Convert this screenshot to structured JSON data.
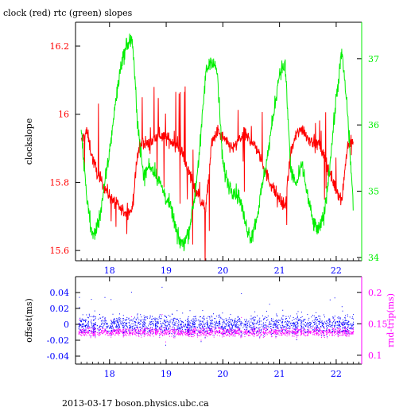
{
  "header": {
    "title": "clock (red) rtc (green) slopes"
  },
  "footer": {
    "text": "2013-03-17  boson.physics.ubc.ca"
  },
  "colors": {
    "red": "#ff0000",
    "green": "#00ee00",
    "blue": "#0000ff",
    "magenta": "#ff00ff",
    "black": "#000000"
  },
  "chart_data": [
    {
      "type": "line",
      "title": "clock (red) rtc (green) slopes",
      "xlabel": "",
      "xlim": [
        17.4,
        22.45
      ],
      "x_ticks": [
        "18",
        "19",
        "20",
        "21",
        "22"
      ],
      "x_tick_values": [
        18,
        19,
        20,
        21,
        22
      ],
      "grid": false,
      "y_left": {
        "label": "clockslope",
        "lim": [
          15.57,
          16.27
        ],
        "ticks": [
          "15.6",
          "15.8",
          "16",
          "16.2"
        ],
        "tick_values": [
          15.6,
          15.8,
          16.0,
          16.2
        ],
        "color": "#ff0000"
      },
      "y_right": {
        "label": "",
        "lim": [
          33.95,
          37.55
        ],
        "ticks": [
          "34",
          "35",
          "36",
          "37"
        ],
        "tick_values": [
          34,
          35,
          36,
          37
        ],
        "color": "#00ee00"
      },
      "series": [
        {
          "axis": "left",
          "color": "#ff0000",
          "x": [
            17.5,
            17.6,
            17.7,
            17.8,
            17.9,
            18.0,
            18.1,
            18.2,
            18.3,
            18.4,
            18.5,
            18.6,
            18.7,
            18.8,
            18.9,
            19.0,
            19.1,
            19.2,
            19.3,
            19.4,
            19.5,
            19.6,
            19.7,
            19.8,
            19.9,
            20.0,
            20.1,
            20.2,
            20.3,
            20.4,
            20.5,
            20.6,
            20.7,
            20.8,
            20.9,
            21.0,
            21.1,
            21.2,
            21.3,
            21.4,
            21.5,
            21.6,
            21.7,
            21.8,
            21.9,
            22.0,
            22.1,
            22.2,
            22.3
          ],
          "y": [
            15.92,
            15.95,
            15.87,
            15.82,
            15.79,
            15.76,
            15.74,
            15.72,
            15.71,
            15.72,
            15.89,
            15.92,
            15.91,
            15.93,
            15.94,
            15.93,
            15.92,
            15.91,
            15.88,
            15.83,
            15.79,
            15.75,
            15.72,
            15.91,
            15.95,
            15.93,
            15.91,
            15.9,
            15.93,
            15.94,
            15.92,
            15.9,
            15.86,
            15.81,
            15.78,
            15.75,
            15.73,
            15.89,
            15.94,
            15.96,
            15.93,
            15.92,
            15.91,
            15.87,
            15.82,
            15.78,
            15.75,
            15.91,
            15.92
          ]
        },
        {
          "axis": "right",
          "color": "#00ee00",
          "x": [
            17.5,
            17.6,
            17.7,
            17.8,
            17.9,
            18.0,
            18.1,
            18.2,
            18.3,
            18.4,
            18.5,
            18.6,
            18.7,
            18.8,
            18.9,
            19.0,
            19.1,
            19.2,
            19.3,
            19.4,
            19.5,
            19.6,
            19.7,
            19.8,
            19.9,
            20.0,
            20.1,
            20.2,
            20.3,
            20.4,
            20.5,
            20.6,
            20.7,
            20.8,
            20.9,
            21.0,
            21.1,
            21.2,
            21.3,
            21.4,
            21.5,
            21.6,
            21.7,
            21.8,
            21.9,
            22.0,
            22.1,
            22.2,
            22.3
          ],
          "y": [
            35.9,
            34.9,
            34.3,
            34.5,
            35.0,
            35.6,
            36.3,
            36.9,
            37.2,
            37.3,
            36.0,
            35.2,
            35.4,
            35.3,
            35.1,
            34.9,
            34.7,
            34.3,
            34.2,
            34.4,
            34.9,
            35.7,
            36.8,
            37.0,
            36.8,
            35.4,
            35.1,
            35.0,
            34.9,
            34.5,
            34.3,
            34.6,
            35.1,
            35.6,
            36.2,
            36.8,
            36.9,
            35.3,
            35.1,
            35.4,
            34.9,
            34.5,
            34.4,
            34.7,
            35.5,
            36.4,
            37.1,
            36.2,
            34.8
          ]
        }
      ]
    },
    {
      "type": "scatter",
      "xlim": [
        17.4,
        22.45
      ],
      "x_ticks": [
        "18",
        "19",
        "20",
        "21",
        "22"
      ],
      "x_tick_values": [
        18,
        19,
        20,
        21,
        22
      ],
      "y_left": {
        "label": "offset(ms)",
        "lim": [
          -0.05,
          0.06
        ],
        "ticks": [
          "-0.04",
          "-0.02",
          "0",
          "0.02",
          "0.04"
        ],
        "tick_values": [
          -0.04,
          -0.02,
          0,
          0.02,
          0.04
        ],
        "color": "#0000ff"
      },
      "y_right": {
        "label": "rnd-trip(ms)",
        "lim": [
          0.086,
          0.225
        ],
        "ticks": [
          "0.1",
          "0.15",
          "0.2"
        ],
        "tick_values": [
          0.1,
          0.15,
          0.2
        ],
        "color": "#ff00ff"
      },
      "series": [
        {
          "axis": "left",
          "color": "#0000ff",
          "center": 0.0,
          "spread": 0.02,
          "x_range": [
            17.45,
            22.3
          ]
        },
        {
          "axis": "right",
          "color": "#ff00ff",
          "center": 0.137,
          "spread": 0.012,
          "x_range": [
            17.45,
            22.3
          ]
        }
      ]
    }
  ]
}
